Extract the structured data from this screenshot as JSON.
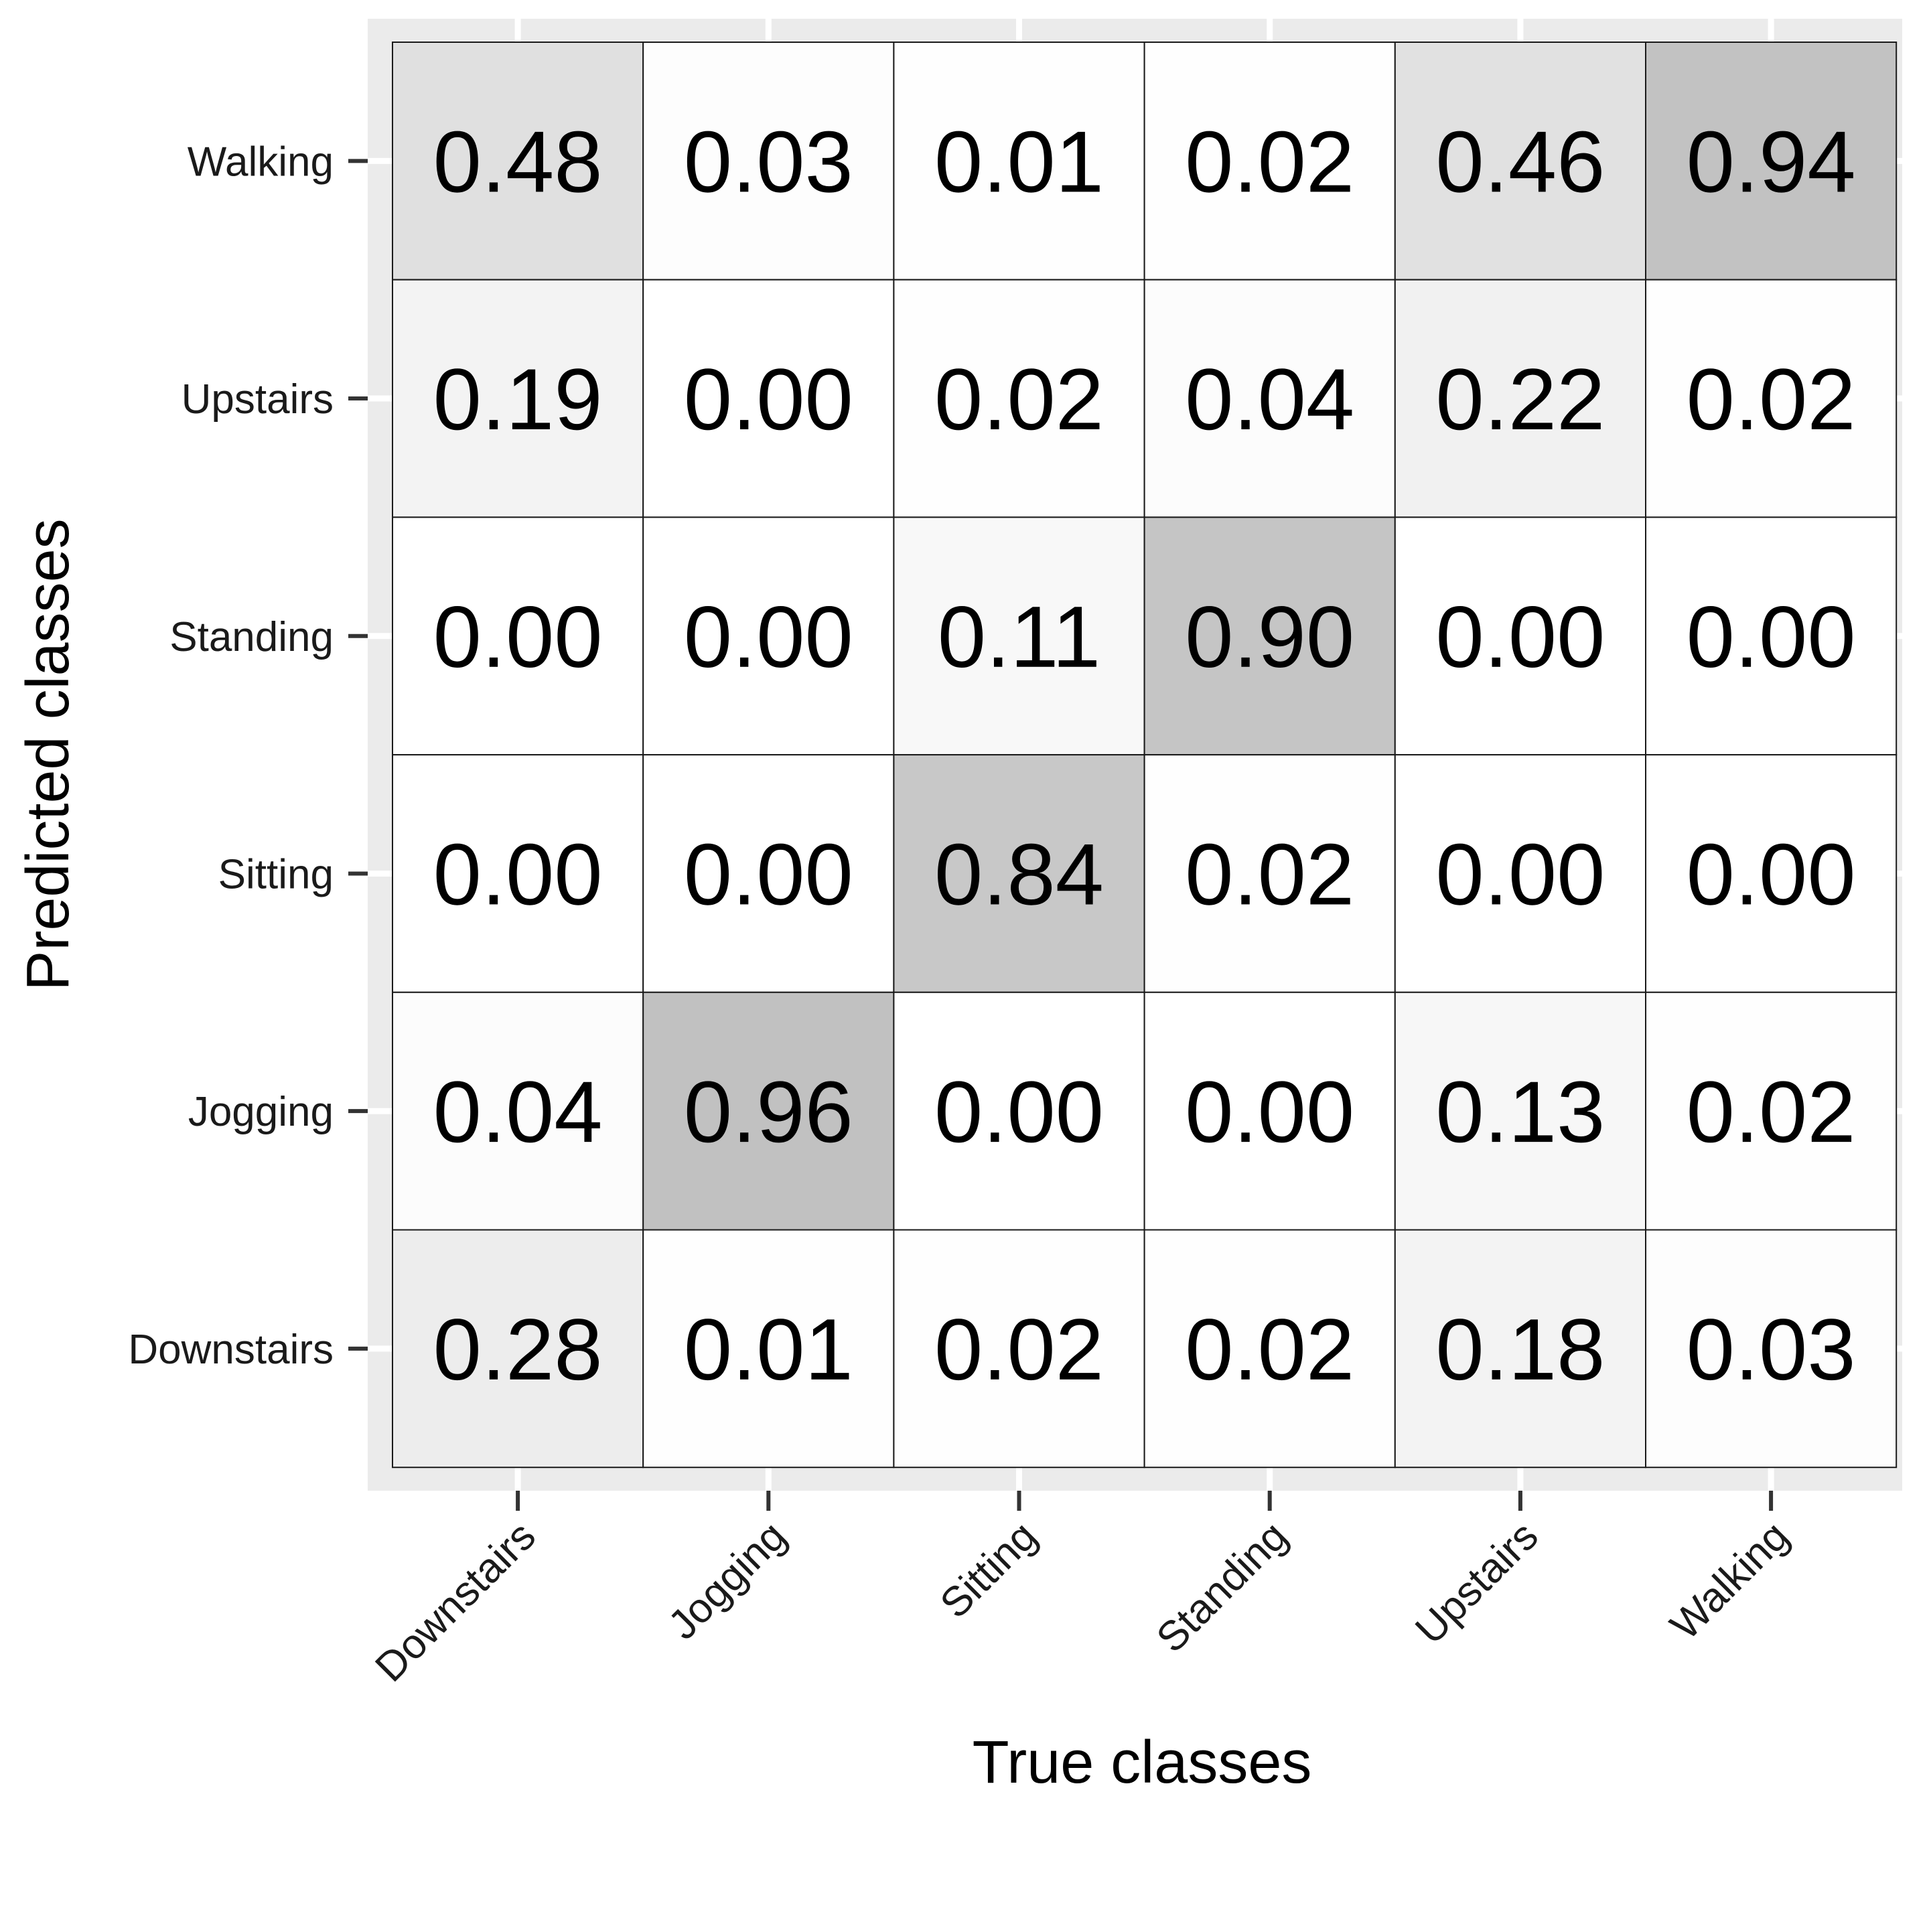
{
  "chart_data": {
    "type": "heatmap",
    "title": "",
    "xlabel": "True classes",
    "ylabel": "Predicted classes",
    "x_categories": [
      "Downstairs",
      "Jogging",
      "Sitting",
      "Standing",
      "Upstairs",
      "Walking"
    ],
    "y_categories_top_to_bottom": [
      "Walking",
      "Upstairs",
      "Standing",
      "Sitting",
      "Jogging",
      "Downstairs"
    ],
    "values": [
      [
        0.48,
        0.03,
        0.01,
        0.02,
        0.46,
        0.94
      ],
      [
        0.19,
        0.0,
        0.02,
        0.04,
        0.22,
        0.02
      ],
      [
        0.0,
        0.0,
        0.11,
        0.9,
        0.0,
        0.0
      ],
      [
        0.0,
        0.0,
        0.84,
        0.02,
        0.0,
        0.0
      ],
      [
        0.04,
        0.96,
        0.0,
        0.0,
        0.13,
        0.02
      ],
      [
        0.28,
        0.01,
        0.02,
        0.02,
        0.18,
        0.03
      ]
    ],
    "value_range": [
      0,
      1
    ],
    "color_low": "#ffffff",
    "color_high": "#bebebe",
    "panel_background": "#ebebeb",
    "grid_color": "#ffffff",
    "grid": true,
    "legend": "none"
  }
}
